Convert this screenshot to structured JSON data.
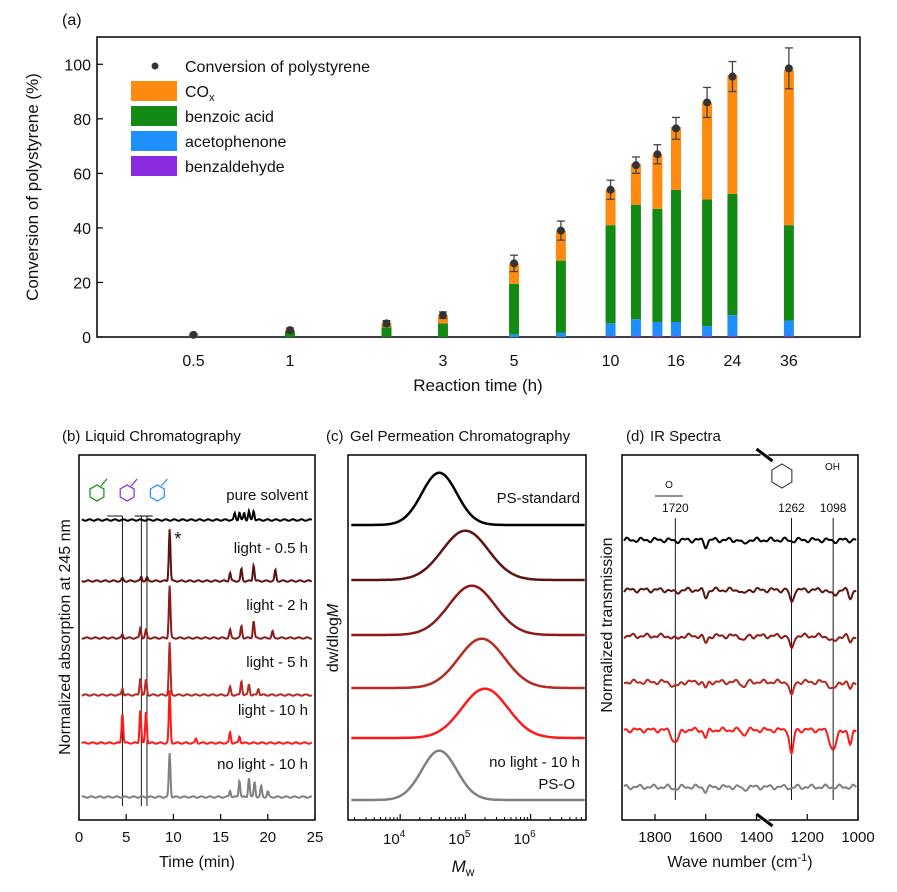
{
  "colors": {
    "cox": "#ff8a12",
    "benzoic": "#138a13",
    "acetophenone": "#1f8fff",
    "benzaldehyde": "#8a2be2",
    "conversion": "#333333",
    "black": "#000000",
    "trace_gray": "#808080",
    "trace_reds": [
      "#000000",
      "#5c1414",
      "#8c1c1c",
      "#b32b22",
      "#ff1a1a",
      "#808080"
    ]
  },
  "chart_data": [
    {
      "panel": "(a)",
      "type": "bar",
      "stacked": true,
      "x_scale": "log",
      "xlabel": "Reaction time (h)",
      "ylabel": "Conversion of polystyrene (%)",
      "ylim": [
        0,
        110
      ],
      "xlim_h": [
        0.25,
        60
      ],
      "x_ticks": [
        {
          "value": 0.5,
          "label": "0.5"
        },
        {
          "value": 1,
          "label": "1"
        },
        {
          "value": 3,
          "label": "3"
        },
        {
          "value": 5,
          "label": "5"
        },
        {
          "value": 10,
          "label": "10"
        },
        {
          "value": 16,
          "label": "16"
        },
        {
          "value": 24,
          "label": "24"
        },
        {
          "value": 36,
          "label": "36"
        }
      ],
      "y_ticks": [
        0,
        20,
        40,
        60,
        80,
        100
      ],
      "legend": {
        "position": "top-left",
        "entries": [
          {
            "key": "conversion",
            "label": "Conversion of polystyrene",
            "marker": "dot"
          },
          {
            "key": "cox",
            "label": "CO",
            "sub": "x",
            "marker": "box"
          },
          {
            "key": "benzoic",
            "label": "benzoic acid",
            "marker": "box"
          },
          {
            "key": "acetophenone",
            "label": "acetophenone",
            "marker": "box"
          },
          {
            "key": "benzaldehyde",
            "label": "benzaldehyde",
            "marker": "box"
          }
        ]
      },
      "time_h": [
        0.5,
        1,
        2,
        3,
        5,
        7,
        10,
        12,
        14,
        16,
        20,
        24,
        36
      ],
      "series": [
        {
          "name": "benzaldehyde",
          "key": "benzaldehyde",
          "values": [
            0,
            0,
            0,
            0,
            0,
            0,
            0.5,
            0.5,
            0.5,
            0.5,
            0.5,
            0.5,
            0.5
          ]
        },
        {
          "name": "acetophenone",
          "key": "acetophenone",
          "values": [
            0,
            0,
            0,
            0,
            1,
            1.5,
            4.5,
            6,
            5,
            5,
            3.5,
            7.5,
            5.5
          ]
        },
        {
          "name": "benzoic acid",
          "key": "benzoic",
          "values": [
            0.5,
            2,
            3.5,
            5,
            18.5,
            26.5,
            36,
            42,
            41.5,
            48.5,
            46.5,
            44.5,
            35
          ]
        },
        {
          "name": "COx",
          "key": "cox",
          "values": [
            0.3,
            0.5,
            1.5,
            3,
            7.5,
            11,
            13,
            15,
            20,
            23,
            35.5,
            43.5,
            57
          ]
        }
      ],
      "conversion": [
        0.8,
        2.5,
        5,
        8,
        27,
        39,
        54,
        63,
        67,
        76.5,
        86,
        95.5,
        98.5
      ],
      "conversion_err": [
        0.5,
        0.8,
        1,
        1.2,
        3,
        3.5,
        3.5,
        3,
        3.5,
        4,
        5.5,
        5.5,
        7.5
      ]
    },
    {
      "panel": "(b)",
      "type": "line",
      "title": "Liquid Chromatography",
      "xlabel": "Time (min)",
      "ylabel": "Normalized absorption at 245 nm",
      "xlim": [
        0,
        25
      ],
      "x_ticks": [
        0,
        5,
        10,
        15,
        20,
        25
      ],
      "annotation": "*",
      "compound_markers_min": [
        4.6,
        6.6,
        7.2
      ],
      "compound_colors": [
        "benzoic",
        "benzaldehyde",
        "acetophenone"
      ],
      "series": [
        {
          "name": "pure solvent",
          "color_index": 0,
          "baseline": 0,
          "peaks": [
            [
              16.5,
              0.12
            ],
            [
              17.0,
              0.14
            ],
            [
              17.5,
              0.13
            ],
            [
              18.0,
              0.16
            ],
            [
              18.5,
              0.17
            ]
          ]
        },
        {
          "name": "light - 0.5 h",
          "color_index": 1,
          "baseline": 1,
          "peaks": [
            [
              4.6,
              0.05
            ],
            [
              6.6,
              0.08
            ],
            [
              7.2,
              0.06
            ],
            [
              9.6,
              0.95
            ],
            [
              16.0,
              0.15
            ],
            [
              17.2,
              0.22
            ],
            [
              18.5,
              0.3
            ],
            [
              20.8,
              0.2
            ]
          ]
        },
        {
          "name": "light - 2 h",
          "color_index": 2,
          "baseline": 2,
          "peaks": [
            [
              4.6,
              0.06
            ],
            [
              6.5,
              0.18
            ],
            [
              7.1,
              0.14
            ],
            [
              9.6,
              0.95
            ],
            [
              16.0,
              0.15
            ],
            [
              17.2,
              0.22
            ],
            [
              18.5,
              0.32
            ],
            [
              20.5,
              0.12
            ]
          ]
        },
        {
          "name": "light - 5 h",
          "color_index": 3,
          "baseline": 3,
          "peaks": [
            [
              4.6,
              0.12
            ],
            [
              6.5,
              0.32
            ],
            [
              7.1,
              0.28
            ],
            [
              9.6,
              0.95
            ],
            [
              16.0,
              0.15
            ],
            [
              17.2,
              0.26
            ],
            [
              18.0,
              0.2
            ],
            [
              19.0,
              0.12
            ]
          ]
        },
        {
          "name": "light - 10 h",
          "color_index": 4,
          "baseline": 4,
          "peaks": [
            [
              4.6,
              0.55
            ],
            [
              6.5,
              0.62
            ],
            [
              7.1,
              0.58
            ],
            [
              9.6,
              0.95
            ],
            [
              12.4,
              0.08
            ],
            [
              16.0,
              0.2
            ],
            [
              17.0,
              0.12
            ]
          ]
        },
        {
          "name": "no light - 10 h",
          "color_index": 5,
          "baseline": 5,
          "peaks": [
            [
              9.6,
              0.8
            ],
            [
              16.0,
              0.12
            ],
            [
              17.0,
              0.3
            ],
            [
              18.0,
              0.35
            ],
            [
              18.6,
              0.28
            ],
            [
              19.3,
              0.2
            ],
            [
              20.0,
              0.1
            ]
          ]
        }
      ]
    },
    {
      "panel": "(c)",
      "type": "line",
      "title": "Gel Permeation Chromatography",
      "xlabel": "M",
      "xlabel_sub": "w",
      "ylabel": "dw/dlog",
      "ylabel_italic": "M",
      "x_scale": "log",
      "xlim_log10": [
        3.2,
        6.85
      ],
      "x_ticks": [
        {
          "exp": 4,
          "label": "10",
          "sup": "4"
        },
        {
          "exp": 5,
          "label": "10",
          "sup": "5"
        },
        {
          "exp": 6,
          "label": "10",
          "sup": "6"
        }
      ],
      "series": [
        {
          "name": "PS-standard",
          "color_index": 0,
          "baseline": 0,
          "center_log10": 4.6,
          "width": 0.38,
          "height": 0.9
        },
        {
          "name": "",
          "color_index": 1,
          "baseline": 1,
          "center_log10": 5.0,
          "width": 0.5,
          "height": 0.85
        },
        {
          "name": "",
          "color_index": 2,
          "baseline": 2,
          "center_log10": 5.1,
          "width": 0.5,
          "height": 0.85
        },
        {
          "name": "",
          "color_index": 3,
          "baseline": 3,
          "center_log10": 5.25,
          "width": 0.5,
          "height": 0.85
        },
        {
          "name": "",
          "color_index": 4,
          "baseline": 4,
          "center_log10": 5.3,
          "width": 0.5,
          "height": 0.85
        },
        {
          "name": "no light - 10 h",
          "label2": "PS-O",
          "color_index": 5,
          "baseline": 5,
          "center_log10": 4.6,
          "width": 0.38,
          "height": 0.85
        }
      ]
    },
    {
      "panel": "(d)",
      "type": "line",
      "title": "IR Spectra",
      "xlabel": "Wave number (cm",
      "xlabel_sup": "-1",
      "xlabel_end": ")",
      "ylabel": "Normalized transmission",
      "xlim": [
        1930,
        1000
      ],
      "x_ticks": [
        1800,
        1600,
        1400,
        1200,
        1000
      ],
      "axis_break_cm": 1400,
      "reference_lines_cm": [
        1720,
        1262,
        1098
      ],
      "reference_labels": [
        "1720",
        "1262",
        "1098"
      ],
      "series": [
        {
          "name": "",
          "color_index": 0,
          "baseline": 0,
          "bands": [
            [
              1720,
              0.02
            ],
            [
              1600,
              0.12
            ],
            [
              1450,
              0.1
            ],
            [
              1262,
              0.02
            ],
            [
              1098,
              0.02
            ]
          ]
        },
        {
          "name": "",
          "color_index": 1,
          "baseline": 1,
          "bands": [
            [
              1720,
              0.05
            ],
            [
              1600,
              0.14
            ],
            [
              1450,
              0.1
            ],
            [
              1262,
              0.25
            ],
            [
              1098,
              0.1
            ],
            [
              1030,
              0.15
            ]
          ]
        },
        {
          "name": "",
          "color_index": 2,
          "baseline": 2,
          "bands": [
            [
              1720,
              0.06
            ],
            [
              1600,
              0.14
            ],
            [
              1450,
              0.1
            ],
            [
              1262,
              0.28
            ],
            [
              1098,
              0.12
            ],
            [
              1030,
              0.12
            ]
          ]
        },
        {
          "name": "",
          "color_index": 3,
          "baseline": 3,
          "bands": [
            [
              1720,
              0.1
            ],
            [
              1600,
              0.12
            ],
            [
              1450,
              0.1
            ],
            [
              1262,
              0.3
            ],
            [
              1098,
              0.15
            ],
            [
              1030,
              0.15
            ]
          ]
        },
        {
          "name": "",
          "color_index": 4,
          "baseline": 4,
          "bands": [
            [
              1720,
              0.25
            ],
            [
              1600,
              0.15
            ],
            [
              1450,
              0.1
            ],
            [
              1262,
              0.5
            ],
            [
              1098,
              0.4
            ],
            [
              1030,
              0.3
            ]
          ]
        },
        {
          "name": "",
          "color_index": 5,
          "baseline": 5,
          "bands": [
            [
              1720,
              0.03
            ],
            [
              1600,
              0.08
            ],
            [
              1450,
              0.06
            ],
            [
              1262,
              0.02
            ]
          ]
        }
      ]
    }
  ]
}
